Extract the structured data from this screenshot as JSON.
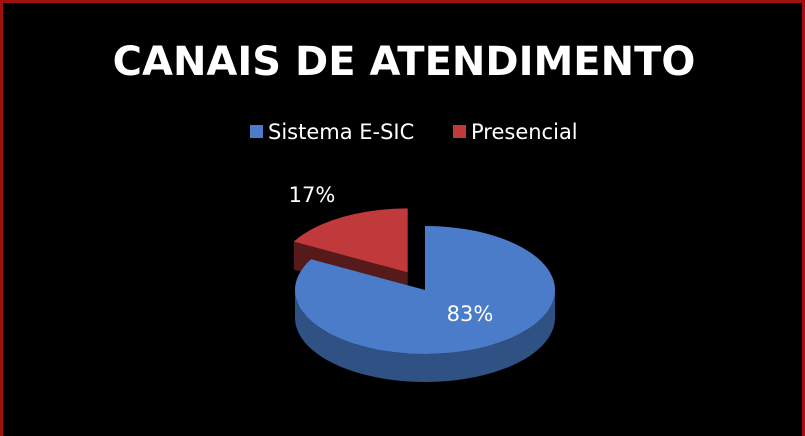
{
  "chart_data": {
    "type": "pie",
    "title": "CANAIS DE ATENDIMENTO",
    "categories": [
      "Sistema E-SIC",
      "Presencial"
    ],
    "values": [
      83,
      17
    ],
    "value_labels": [
      "83%",
      "17%"
    ],
    "colors": [
      "#4a7cc9",
      "#c0393b"
    ],
    "legend": "top"
  }
}
